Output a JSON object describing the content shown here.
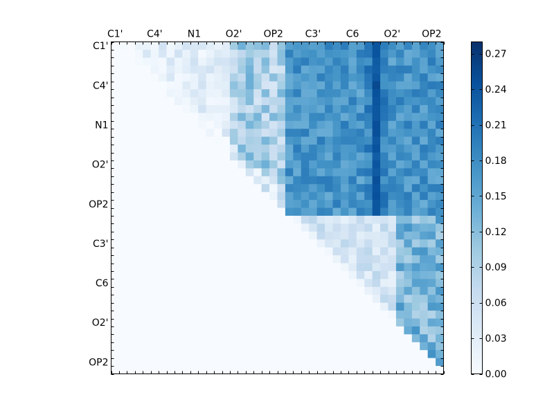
{
  "chart_data": {
    "type": "heatmap",
    "title": "",
    "xlabel": "",
    "ylabel": "",
    "colormap": "Blues",
    "colors": {
      "min": "#f7fbff",
      "max": "#08306b",
      "stops": [
        "#f7fbff",
        "#deebf7",
        "#c6dbef",
        "#9ecae1",
        "#6baed6",
        "#4292c6",
        "#2171b5",
        "#08519c",
        "#08306b"
      ]
    },
    "matrix_size": 42,
    "x_tick_labels": [
      "C1'",
      "C4'",
      "N1",
      "O2'",
      "OP2",
      "C3'",
      "C6",
      "O2'",
      "OP2"
    ],
    "y_tick_labels": [
      "C1'",
      "C4'",
      "N1",
      "O2'",
      "OP2",
      "C3'",
      "C6",
      "O2'",
      "OP2"
    ],
    "label_index_step": 5,
    "colorbar": {
      "range": [
        0.0,
        0.28
      ],
      "ticks": [
        "0.00",
        "0.03",
        "0.06",
        "0.09",
        "0.12",
        "0.15",
        "0.18",
        "0.21",
        "0.24",
        "0.27"
      ]
    },
    "block_levels": {
      "upper_right_block": 0.17,
      "upper_right_peak_column": 0.24,
      "intra_first_group": 0.03,
      "intra_first_group_right_columns": 0.09,
      "second_group_near_diagonal": 0.05,
      "second_group_right_columns": 0.13,
      "lower_triangle": 0.0
    }
  }
}
